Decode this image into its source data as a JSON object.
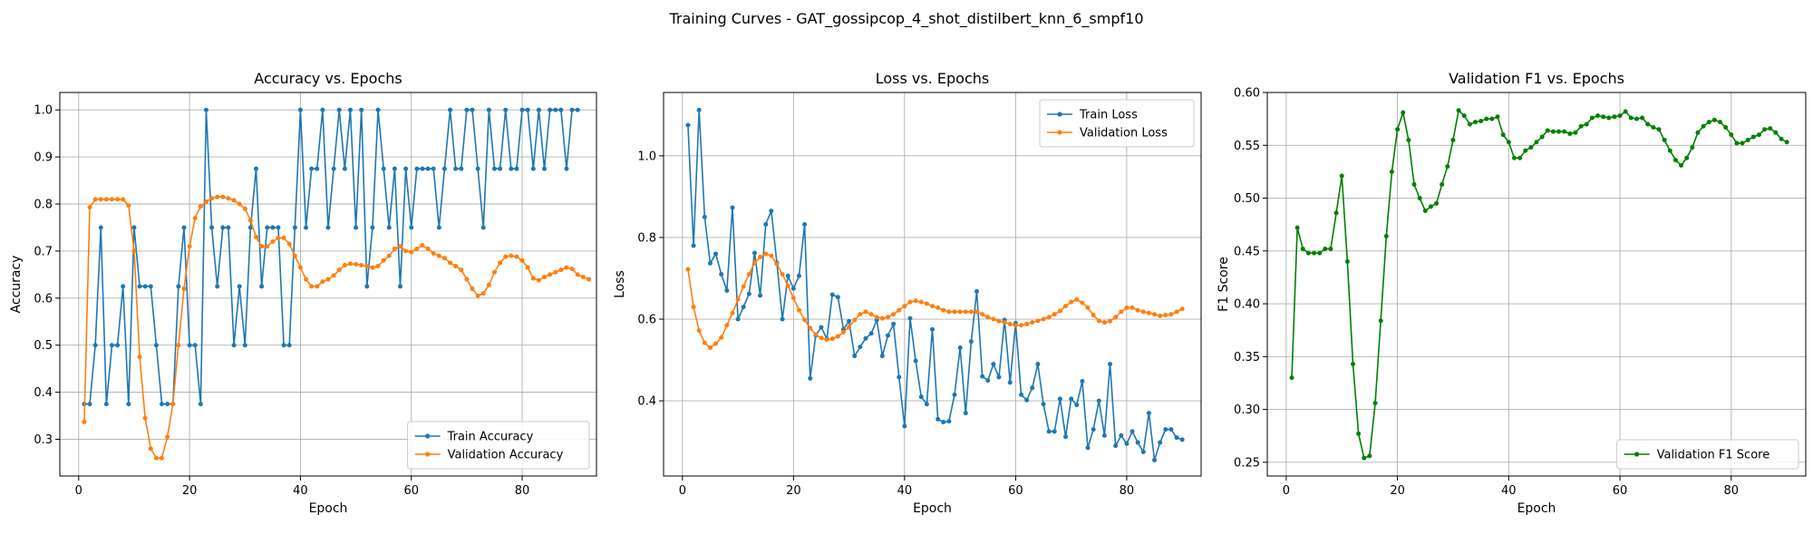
{
  "figure": {
    "title": "Training Curves - GAT_gossipcop_4_shot_distilbert_knn_6_smpf10"
  },
  "colors": {
    "train": "#1f77b4",
    "validation": "#ff7f0e",
    "f1": "#008000",
    "grid": "#b0b0b0"
  },
  "chart_data": [
    {
      "type": "line",
      "title": "Accuracy vs. Epochs",
      "xlabel": "Epoch",
      "ylabel": "Accuracy",
      "xlim": [
        -3.4,
        93.4
      ],
      "ylim": [
        0.222,
        1.037
      ],
      "xticks": [
        0,
        20,
        40,
        60,
        80
      ],
      "yticks": [
        0.3,
        0.4,
        0.5,
        0.6,
        0.7,
        0.8,
        0.9,
        1.0
      ],
      "ytick_labels": [
        "0.3",
        "0.4",
        "0.5",
        "0.6",
        "0.7",
        "0.8",
        "0.9",
        "1.0"
      ],
      "grid": true,
      "legend_position": "lower right",
      "series": [
        {
          "name": "Train Accuracy",
          "color": "#1f77b4",
          "values": [
            0.375,
            0.375,
            0.5,
            0.75,
            0.375,
            0.5,
            0.5,
            0.625,
            0.375,
            0.75,
            0.625,
            0.625,
            0.625,
            0.5,
            0.375,
            0.375,
            0.375,
            0.625,
            0.75,
            0.5,
            0.5,
            0.375,
            1.0,
            0.75,
            0.625,
            0.75,
            0.75,
            0.5,
            0.625,
            0.5,
            0.75,
            0.875,
            0.625,
            0.75,
            0.75,
            0.75,
            0.5,
            0.5,
            0.75,
            1.0,
            0.75,
            0.875,
            0.875,
            1.0,
            0.75,
            0.875,
            1.0,
            0.875,
            1.0,
            0.75,
            1.0,
            0.625,
            0.75,
            1.0,
            0.875,
            0.75,
            0.875,
            0.625,
            0.875,
            0.75,
            0.875,
            0.875,
            0.875,
            0.875,
            0.75,
            0.875,
            1.0,
            0.875,
            0.875,
            1.0,
            1.0,
            0.875,
            0.75,
            1.0,
            0.875,
            0.875,
            1.0,
            0.875,
            0.875,
            1.0,
            1.0,
            0.875,
            1.0,
            0.875,
            1.0,
            1.0,
            1.0,
            0.875,
            1.0,
            1.0
          ]
        },
        {
          "name": "Validation Accuracy",
          "color": "#ff7f0e",
          "values": [
            0.337,
            0.793,
            0.81,
            0.81,
            0.81,
            0.81,
            0.81,
            0.81,
            0.797,
            0.7,
            0.475,
            0.345,
            0.28,
            0.26,
            0.26,
            0.305,
            0.375,
            0.5,
            0.62,
            0.71,
            0.77,
            0.795,
            0.805,
            0.812,
            0.815,
            0.815,
            0.812,
            0.808,
            0.8,
            0.79,
            0.765,
            0.73,
            0.71,
            0.71,
            0.72,
            0.728,
            0.728,
            0.715,
            0.69,
            0.665,
            0.64,
            0.625,
            0.625,
            0.635,
            0.64,
            0.648,
            0.66,
            0.67,
            0.673,
            0.672,
            0.67,
            0.668,
            0.665,
            0.668,
            0.68,
            0.69,
            0.705,
            0.71,
            0.7,
            0.698,
            0.705,
            0.712,
            0.705,
            0.695,
            0.69,
            0.685,
            0.675,
            0.668,
            0.66,
            0.64,
            0.62,
            0.605,
            0.61,
            0.628,
            0.655,
            0.675,
            0.688,
            0.69,
            0.688,
            0.68,
            0.665,
            0.642,
            0.638,
            0.645,
            0.65,
            0.655,
            0.66,
            0.665,
            0.662,
            0.65,
            0.645,
            0.64
          ]
        }
      ]
    },
    {
      "type": "line",
      "title": "Loss vs. Epochs",
      "xlabel": "Epoch",
      "ylabel": "Loss",
      "xlim": [
        -3.4,
        93.4
      ],
      "ylim": [
        0.216,
        1.155
      ],
      "xticks": [
        0,
        20,
        40,
        60,
        80
      ],
      "yticks": [
        0.4,
        0.6,
        0.8,
        1.0
      ],
      "ytick_labels": [
        "0.4",
        "0.6",
        "0.8",
        "1.0"
      ],
      "grid": true,
      "legend_position": "upper right",
      "series": [
        {
          "name": "Train Loss",
          "color": "#1f77b4",
          "values": [
            1.075,
            0.78,
            1.112,
            0.85,
            0.737,
            0.76,
            0.71,
            0.67,
            0.873,
            0.6,
            0.63,
            0.662,
            0.762,
            0.658,
            0.832,
            0.865,
            0.738,
            0.6,
            0.706,
            0.675,
            0.706,
            0.832,
            0.455,
            0.56,
            0.58,
            0.552,
            0.66,
            0.654,
            0.575,
            0.595,
            0.51,
            0.532,
            0.553,
            0.565,
            0.598,
            0.51,
            0.56,
            0.588,
            0.458,
            0.338,
            0.602,
            0.498,
            0.41,
            0.392,
            0.575,
            0.355,
            0.348,
            0.35,
            0.415,
            0.53,
            0.37,
            0.545,
            0.668,
            0.46,
            0.45,
            0.49,
            0.458,
            0.598,
            0.445,
            0.59,
            0.415,
            0.402,
            0.432,
            0.49,
            0.392,
            0.325,
            0.325,
            0.405,
            0.312,
            0.405,
            0.39,
            0.448,
            0.285,
            0.33,
            0.4,
            0.315,
            0.49,
            0.29,
            0.315,
            0.295,
            0.325,
            0.298,
            0.275,
            0.37,
            0.255,
            0.298,
            0.33,
            0.33,
            0.31,
            0.305
          ]
        },
        {
          "name": "Validation Loss",
          "color": "#ff7f0e",
          "values": [
            0.722,
            0.63,
            0.572,
            0.542,
            0.53,
            0.54,
            0.555,
            0.585,
            0.615,
            0.648,
            0.68,
            0.71,
            0.738,
            0.752,
            0.76,
            0.755,
            0.735,
            0.71,
            0.682,
            0.652,
            0.622,
            0.598,
            0.578,
            0.562,
            0.554,
            0.55,
            0.552,
            0.558,
            0.568,
            0.58,
            0.598,
            0.612,
            0.618,
            0.612,
            0.605,
            0.602,
            0.605,
            0.612,
            0.622,
            0.632,
            0.642,
            0.645,
            0.642,
            0.638,
            0.632,
            0.628,
            0.622,
            0.618,
            0.618,
            0.618,
            0.618,
            0.618,
            0.618,
            0.612,
            0.605,
            0.6,
            0.595,
            0.592,
            0.588,
            0.585,
            0.585,
            0.588,
            0.592,
            0.596,
            0.6,
            0.605,
            0.612,
            0.62,
            0.632,
            0.642,
            0.648,
            0.64,
            0.628,
            0.61,
            0.596,
            0.592,
            0.595,
            0.605,
            0.618,
            0.628,
            0.628,
            0.622,
            0.618,
            0.615,
            0.612,
            0.608,
            0.61,
            0.612,
            0.618,
            0.625
          ]
        }
      ]
    },
    {
      "type": "line",
      "title": "Validation F1 vs. Epochs",
      "xlabel": "Epoch",
      "ylabel": "F1 Score",
      "xlim": [
        -3.4,
        93.4
      ],
      "ylim": [
        0.237,
        0.6
      ],
      "xticks": [
        0,
        20,
        40,
        60,
        80
      ],
      "yticks": [
        0.25,
        0.3,
        0.35,
        0.4,
        0.45,
        0.5,
        0.55,
        0.6
      ],
      "ytick_labels": [
        "0.25",
        "0.30",
        "0.35",
        "0.40",
        "0.45",
        "0.50",
        "0.55",
        "0.60"
      ],
      "grid": true,
      "legend_position": "lower right",
      "series": [
        {
          "name": "Validation F1 Score",
          "color": "#008000",
          "values": [
            0.33,
            0.472,
            0.452,
            0.448,
            0.448,
            0.448,
            0.452,
            0.452,
            0.486,
            0.521,
            0.44,
            0.343,
            0.277,
            0.254,
            0.256,
            0.306,
            0.384,
            0.464,
            0.525,
            0.565,
            0.581,
            0.555,
            0.513,
            0.5,
            0.488,
            0.492,
            0.495,
            0.513,
            0.53,
            0.555,
            0.583,
            0.578,
            0.57,
            0.572,
            0.573,
            0.575,
            0.575,
            0.577,
            0.56,
            0.553,
            0.538,
            0.538,
            0.545,
            0.548,
            0.553,
            0.558,
            0.564,
            0.563,
            0.563,
            0.563,
            0.561,
            0.562,
            0.568,
            0.57,
            0.576,
            0.578,
            0.577,
            0.576,
            0.577,
            0.578,
            0.582,
            0.576,
            0.575,
            0.576,
            0.57,
            0.567,
            0.565,
            0.555,
            0.545,
            0.536,
            0.531,
            0.538,
            0.548,
            0.562,
            0.568,
            0.572,
            0.574,
            0.572,
            0.567,
            0.56,
            0.552,
            0.552,
            0.555,
            0.558,
            0.56,
            0.565,
            0.566,
            0.562,
            0.556,
            0.553
          ]
        }
      ]
    }
  ]
}
